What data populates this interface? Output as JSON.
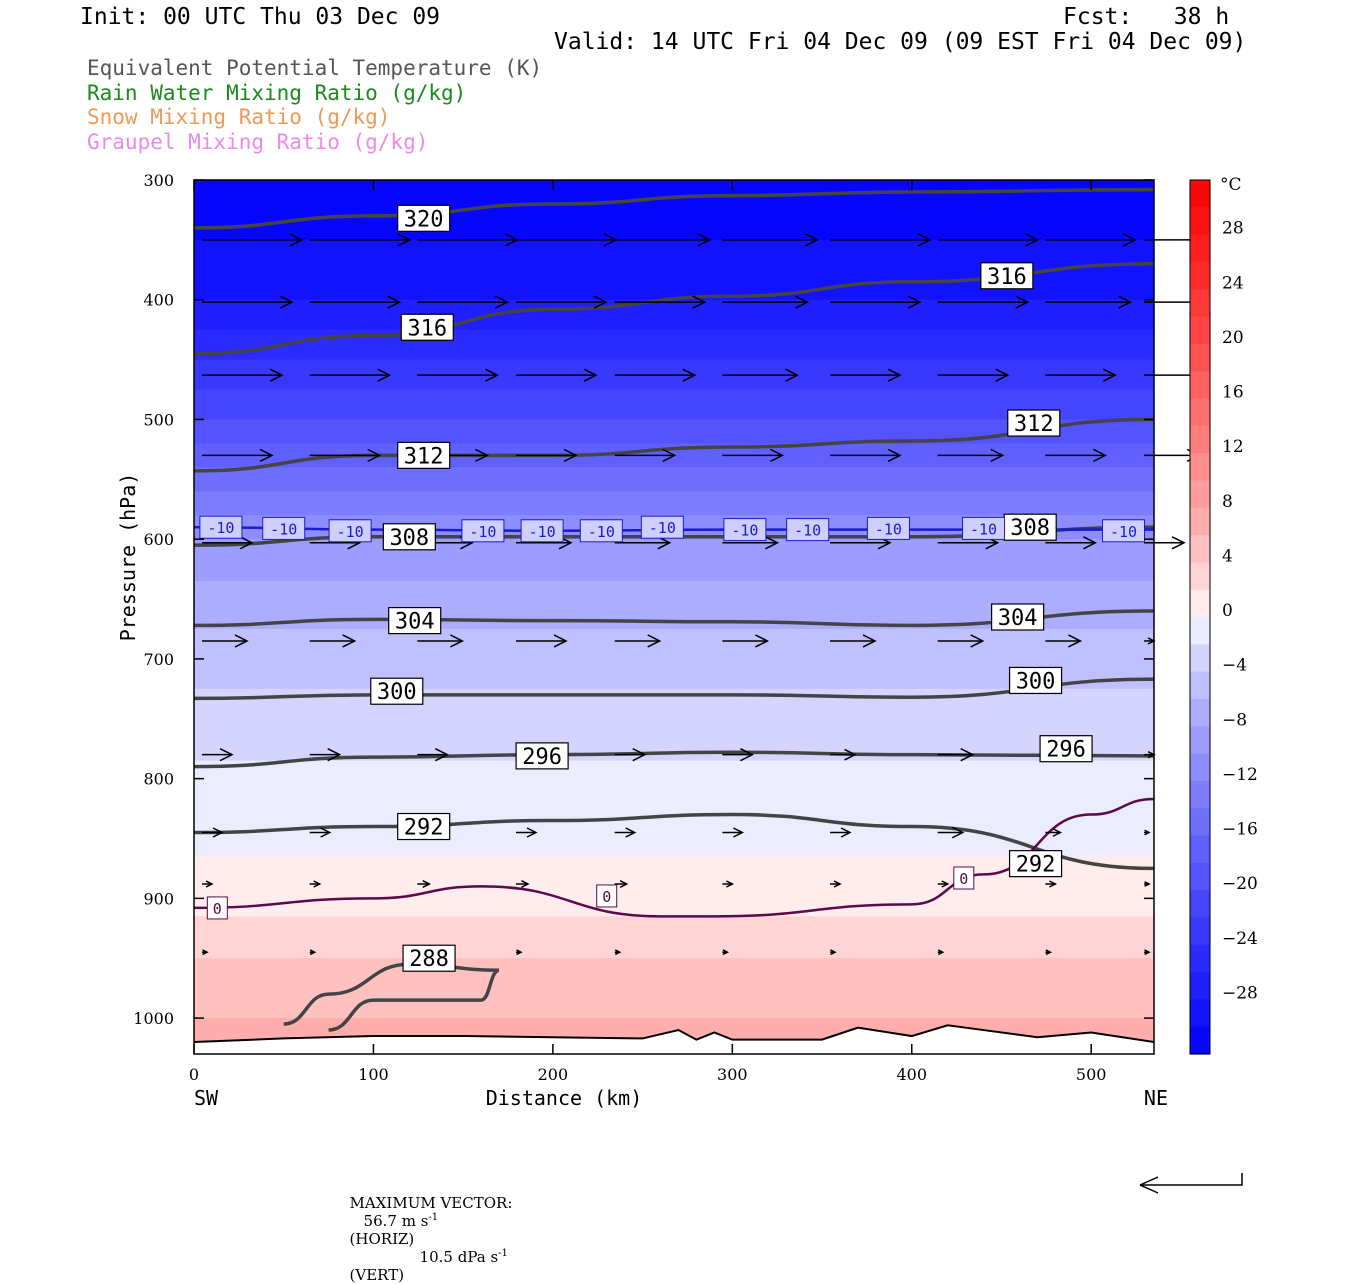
{
  "header": {
    "init": "Init: 00 UTC Thu 03 Dec 09",
    "fcst": "Fcst:   38 h",
    "valid": "Valid: 14 UTC Fri 04 Dec 09 (09 EST Fri 04 Dec 09)",
    "legend": [
      {
        "text": "Equivalent Potential Temperature (K)",
        "color": "#555555"
      },
      {
        "text": "Rain Water Mixing Ratio (g/kg)",
        "color": "#1a8a1a"
      },
      {
        "text": "Snow Mixing Ratio (g/kg)",
        "color": "#ee9955"
      },
      {
        "text": "Graupel Mixing Ratio (g/kg)",
        "color": "#ee88ee"
      }
    ]
  },
  "footer": {
    "max_vector_label": "MAXIMUM VECTOR:",
    "horiz_value": "56.7 m s",
    "horiz_exp": "-1",
    "horiz_tag": "(HORIZ)",
    "vert_value": "10.5 dPa s",
    "vert_exp": "-1",
    "vert_tag": "(VERT)"
  },
  "chart_data": {
    "type": "heatmap",
    "title": "",
    "xlabel": "Distance (km)",
    "ylabel": "Pressure (hPa)",
    "x_end_labels": {
      "left": "SW",
      "right": "NE"
    },
    "xlim": [
      0,
      535
    ],
    "ylim": [
      300,
      1030
    ],
    "x_ticks": [
      0,
      100,
      200,
      300,
      400,
      500
    ],
    "y_ticks": [
      300,
      400,
      500,
      600,
      700,
      800,
      900,
      1000
    ],
    "colorbar": {
      "unit": "°C",
      "ticks": [
        28,
        24,
        20,
        16,
        12,
        8,
        4,
        0,
        -4,
        -8,
        -12,
        -16,
        -20,
        -24,
        -28
      ],
      "range": [
        -32,
        32
      ],
      "cold_color": "#0000ff",
      "warm_color": "#ff0000"
    },
    "temperature_field": {
      "pressure_levels": [
        300,
        350,
        400,
        450,
        500,
        550,
        600,
        650,
        700,
        750,
        800,
        850,
        900,
        950,
        1000,
        1030
      ],
      "temperature_c": [
        -32,
        -30,
        -28,
        -24,
        -20,
        -15,
        -10,
        -7,
        -5,
        -3,
        -1.5,
        -0.5,
        1,
        4,
        6,
        7
      ]
    },
    "theta_e_contours": [
      {
        "label": "320",
        "x": [
          0,
          100,
          200,
          300,
          400,
          535
        ],
        "p": [
          340,
          330,
          320,
          313,
          310,
          308
        ]
      },
      {
        "label": "316",
        "x": [
          0,
          100,
          200,
          300,
          400,
          535
        ],
        "p": [
          445,
          430,
          408,
          397,
          385,
          370
        ]
      },
      {
        "label": "312",
        "x": [
          0,
          100,
          200,
          300,
          400,
          535
        ],
        "p": [
          543,
          530,
          530,
          523,
          518,
          500
        ]
      },
      {
        "label": "308",
        "x": [
          0,
          100,
          200,
          300,
          400,
          535
        ],
        "p": [
          605,
          598,
          598,
          598,
          598,
          590
        ]
      },
      {
        "label": "304",
        "x": [
          0,
          100,
          200,
          300,
          400,
          535
        ],
        "p": [
          672,
          667,
          668,
          669,
          672,
          660
        ]
      },
      {
        "label": "300",
        "x": [
          0,
          100,
          200,
          300,
          400,
          535
        ],
        "p": [
          733,
          730,
          730,
          730,
          732,
          717
        ]
      },
      {
        "label": "296",
        "x": [
          0,
          100,
          200,
          300,
          400,
          535
        ],
        "p": [
          790,
          782,
          780,
          778,
          780,
          781
        ]
      },
      {
        "label": "292",
        "x": [
          0,
          100,
          200,
          300,
          400,
          535
        ],
        "p": [
          845,
          840,
          835,
          830,
          840,
          875
        ]
      },
      {
        "label": "288",
        "x": [
          50,
          75,
          120,
          170,
          160,
          100,
          75
        ],
        "p": [
          1005,
          980,
          955,
          960,
          985,
          985,
          1010
        ]
      }
    ],
    "isotherm_contours": [
      {
        "label": "-10",
        "x": [
          0,
          100,
          200,
          300,
          400,
          535
        ],
        "p": [
          590,
          592,
          593,
          592,
          592,
          592
        ]
      },
      {
        "label": "0",
        "x": [
          0,
          100,
          160,
          260,
          290,
          400,
          440,
          500,
          535
        ],
        "p": [
          908,
          900,
          890,
          915,
          915,
          905,
          880,
          830,
          817
        ]
      }
    ],
    "label_positions": {
      "theta_e": [
        {
          "label": "320",
          "x": 128,
          "p": 332
        },
        {
          "label": "316",
          "x": 130,
          "p": 423
        },
        {
          "label": "316",
          "x": 453,
          "p": 380
        },
        {
          "label": "312",
          "x": 128,
          "p": 530
        },
        {
          "label": "312",
          "x": 468,
          "p": 503
        },
        {
          "label": "308",
          "x": 120,
          "p": 598
        },
        {
          "label": "308",
          "x": 466,
          "p": 590
        },
        {
          "label": "304",
          "x": 123,
          "p": 668
        },
        {
          "label": "304",
          "x": 459,
          "p": 665
        },
        {
          "label": "300",
          "x": 113,
          "p": 727
        },
        {
          "label": "300",
          "x": 469,
          "p": 718
        },
        {
          "label": "296",
          "x": 194,
          "p": 781
        },
        {
          "label": "296",
          "x": 486,
          "p": 775
        },
        {
          "label": "292",
          "x": 128,
          "p": 840
        },
        {
          "label": "292",
          "x": 469,
          "p": 871
        },
        {
          "label": "288",
          "x": 131,
          "p": 950
        }
      ],
      "isotherm": [
        {
          "label": "-10",
          "x": 15,
          "p": 590
        },
        {
          "label": "-10",
          "x": 50,
          "p": 591
        },
        {
          "label": "-10",
          "x": 87,
          "p": 593
        },
        {
          "label": "-10",
          "x": 161,
          "p": 593
        },
        {
          "label": "-10",
          "x": 194,
          "p": 593
        },
        {
          "label": "-10",
          "x": 227,
          "p": 593
        },
        {
          "label": "-10",
          "x": 261,
          "p": 590
        },
        {
          "label": "-10",
          "x": 307,
          "p": 592
        },
        {
          "label": "-10",
          "x": 342,
          "p": 592
        },
        {
          "label": "-10",
          "x": 387,
          "p": 591
        },
        {
          "label": "-10",
          "x": 440,
          "p": 591
        },
        {
          "label": "-10",
          "x": 518,
          "p": 593
        },
        {
          "label": "0",
          "x": 13,
          "p": 908
        },
        {
          "label": "0",
          "x": 230,
          "p": 898
        },
        {
          "label": "0",
          "x": 429,
          "p": 883
        }
      ]
    },
    "wind_vectors": {
      "levels": [
        {
          "p": 350,
          "x": [
            0,
            60,
            120,
            175,
            230,
            290,
            350,
            410,
            470,
            525
          ],
          "u": [
            1.0,
            1.0,
            1.0,
            1.0,
            0.95,
            0.95,
            1.0,
            1.0,
            0.9,
            0.6
          ]
        },
        {
          "p": 402,
          "x": [
            0,
            60,
            120,
            175,
            230,
            290,
            350,
            410,
            470,
            525
          ],
          "u": [
            0.9,
            0.9,
            0.9,
            0.9,
            0.9,
            0.85,
            0.9,
            0.9,
            0.85,
            0.6
          ]
        },
        {
          "p": 463,
          "x": [
            0,
            60,
            120,
            175,
            230,
            290,
            350,
            410,
            470,
            525
          ],
          "u": [
            0.8,
            0.8,
            0.8,
            0.8,
            0.8,
            0.75,
            0.7,
            0.7,
            0.7,
            0.6
          ]
        },
        {
          "p": 530,
          "x": [
            0,
            60,
            120,
            175,
            230,
            290,
            350,
            410,
            470,
            525
          ],
          "u": [
            0.7,
            0.7,
            0.7,
            0.6,
            0.6,
            0.6,
            0.7,
            0.65,
            0.6,
            0.55
          ]
        },
        {
          "p": 603,
          "x": [
            0,
            60,
            120,
            175,
            230,
            290,
            350,
            410,
            470,
            525
          ],
          "u": [
            0.5,
            0.5,
            0.55,
            0.55,
            0.55,
            0.55,
            0.6,
            0.6,
            0.5,
            0.4
          ]
        },
        {
          "p": 685,
          "x": [
            0,
            60,
            120,
            175,
            230,
            290,
            350,
            410,
            470,
            525
          ],
          "u": [
            0.45,
            0.45,
            0.45,
            0.5,
            0.45,
            0.45,
            0.45,
            0.45,
            0.35,
            0.1
          ]
        },
        {
          "p": 780,
          "x": [
            0,
            60,
            120,
            175,
            230,
            290,
            350,
            410,
            470,
            525
          ],
          "u": [
            0.3,
            0.3,
            0.3,
            0.3,
            0.3,
            0.3,
            0.25,
            0.35,
            0.2,
            0.1
          ]
        },
        {
          "p": 845,
          "x": [
            0,
            60,
            120,
            175,
            230,
            290,
            350,
            410,
            470,
            525
          ],
          "u": [
            0.2,
            0.2,
            0.2,
            0.2,
            0.2,
            0.2,
            0.2,
            0.25,
            0.15,
            0.05
          ]
        },
        {
          "p": 888,
          "x": [
            0,
            60,
            120,
            175,
            230,
            290,
            350,
            410,
            470,
            525
          ],
          "u": [
            0.1,
            0.1,
            0.12,
            0.12,
            0.12,
            0.1,
            0.1,
            0.1,
            0.1,
            0.05
          ]
        },
        {
          "p": 945,
          "x": [
            0,
            60,
            120,
            175,
            230,
            290,
            350,
            410,
            470,
            525
          ],
          "u": [
            0.05,
            0.05,
            0.05,
            0.05,
            0.05,
            0.05,
            0.05,
            0.05,
            0.05,
            0.05
          ]
        }
      ],
      "max_horizontal_ms": 56.7,
      "max_vertical_dPa_s": 10.5
    },
    "terrain_pressure": {
      "x": [
        0,
        50,
        100,
        150,
        200,
        250,
        270,
        280,
        290,
        300,
        350,
        370,
        400,
        420,
        440,
        470,
        500,
        535
      ],
      "p": [
        1020,
        1017,
        1015,
        1015,
        1016,
        1017,
        1010,
        1018,
        1012,
        1018,
        1018,
        1008,
        1015,
        1006,
        1010,
        1016,
        1012,
        1020
      ]
    }
  }
}
